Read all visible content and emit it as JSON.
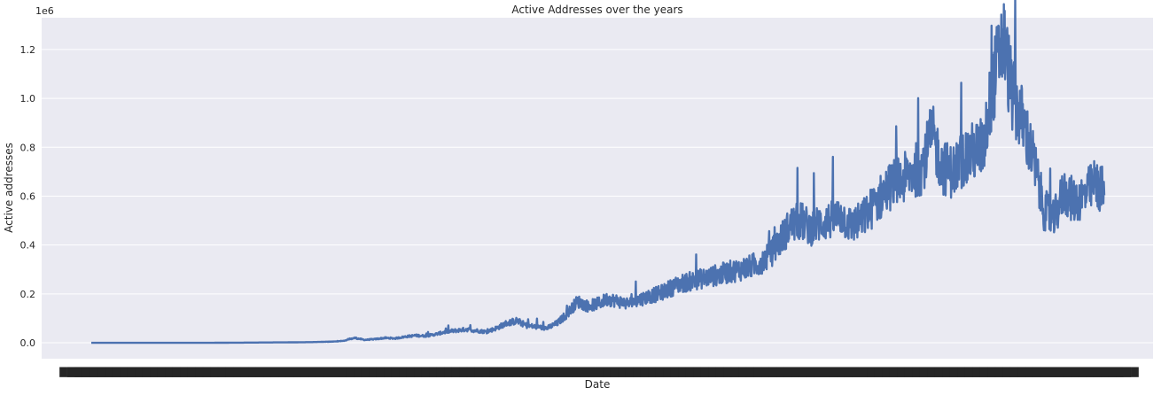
{
  "chart_data": {
    "type": "line",
    "title": "Active Addresses over the years",
    "xlabel": "Date",
    "ylabel": "Active addresses",
    "y_offset_text": "1e6",
    "y_ticks": [
      "0.0",
      "0.2",
      "0.4",
      "0.6",
      "0.8",
      "1.0",
      "1.2"
    ],
    "y_tick_values": [
      0.0,
      0.2,
      0.4,
      0.6,
      0.8,
      1.0,
      1.2
    ],
    "ylim": [
      -0.065,
      1.33
    ],
    "grid": true,
    "style": "seaborn-darkgrid",
    "colors": {
      "background": "#eaeaf2",
      "grid": "#ffffff",
      "line": "#4c72b0",
      "text": "#262626"
    },
    "x_ticks_note": "dense overlapping date tick labels",
    "series": [
      {
        "x": [
          0,
          0.04,
          0.08,
          0.12,
          0.16,
          0.2,
          0.22,
          0.24,
          0.25,
          0.26,
          0.27,
          0.28,
          0.29,
          0.3,
          0.31,
          0.32,
          0.33,
          0.34,
          0.35,
          0.36,
          0.37,
          0.38,
          0.39,
          0.4,
          0.41,
          0.42,
          0.43,
          0.44,
          0.45,
          0.46,
          0.47,
          0.48,
          0.49,
          0.5,
          0.51,
          0.52,
          0.53,
          0.54,
          0.55,
          0.56,
          0.57,
          0.58,
          0.59,
          0.6,
          0.61,
          0.62,
          0.63,
          0.64,
          0.65,
          0.66,
          0.67,
          0.68,
          0.69,
          0.7,
          0.71,
          0.72,
          0.73,
          0.74,
          0.75,
          0.76,
          0.77,
          0.78,
          0.79,
          0.8,
          0.81,
          0.82,
          0.83,
          0.84,
          0.85,
          0.86,
          0.87,
          0.88,
          0.89,
          0.9,
          0.91,
          0.92,
          0.93,
          0.94,
          0.95,
          0.96,
          0.97,
          0.98,
          0.99,
          1.0
        ],
        "values": [
          0.0,
          0.0,
          0.0,
          0.0,
          0.001,
          0.002,
          0.003,
          0.005,
          0.008,
          0.02,
          0.012,
          0.015,
          0.02,
          0.018,
          0.025,
          0.03,
          0.028,
          0.035,
          0.045,
          0.05,
          0.055,
          0.05,
          0.045,
          0.06,
          0.08,
          0.09,
          0.07,
          0.065,
          0.06,
          0.08,
          0.12,
          0.17,
          0.15,
          0.16,
          0.18,
          0.17,
          0.16,
          0.175,
          0.19,
          0.2,
          0.22,
          0.24,
          0.25,
          0.26,
          0.27,
          0.28,
          0.29,
          0.3,
          0.31,
          0.33,
          0.36,
          0.42,
          0.48,
          0.5,
          0.47,
          0.49,
          0.5,
          0.52,
          0.48,
          0.5,
          0.55,
          0.6,
          0.65,
          0.66,
          0.7,
          0.72,
          0.85,
          0.72,
          0.7,
          0.75,
          0.78,
          0.8,
          1.05,
          1.25,
          1.0,
          0.9,
          0.75,
          0.55,
          0.5,
          0.62,
          0.58,
          0.6,
          0.65,
          0.62
        ]
      }
    ]
  }
}
